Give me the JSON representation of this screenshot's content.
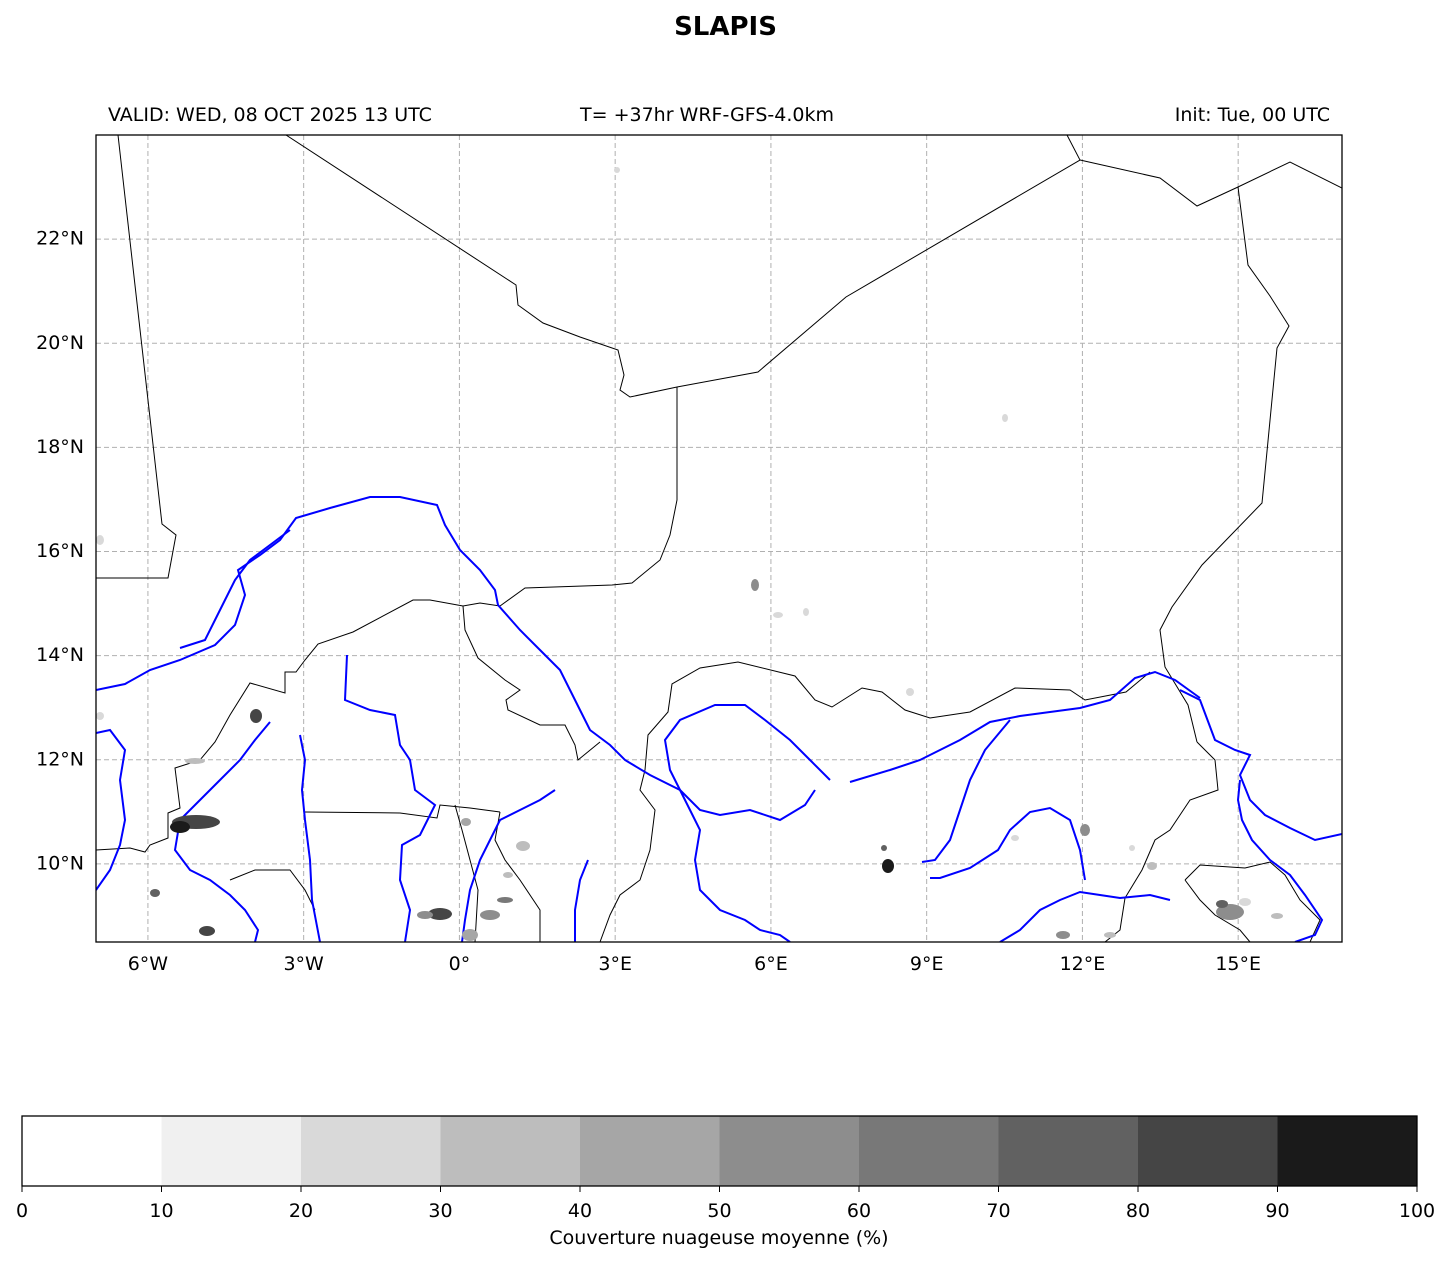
{
  "header": {
    "title": "SLAPIS",
    "valid": "VALID: WED, 08 OCT 2025 13 UTC",
    "forecast": "T= +37hr WRF-GFS-4.0km",
    "init": "Init: Tue, 00 UTC"
  },
  "map": {
    "extent": {
      "lon": [
        -7,
        17
      ],
      "lat": [
        8.5,
        24
      ]
    },
    "lat_ticks": [
      {
        "value": 22,
        "label": "22°N"
      },
      {
        "value": 20,
        "label": "20°N"
      },
      {
        "value": 18,
        "label": "18°N"
      },
      {
        "value": 16,
        "label": "16°N"
      },
      {
        "value": 14,
        "label": "14°N"
      },
      {
        "value": 12,
        "label": "12°N"
      },
      {
        "value": 10,
        "label": "10°N"
      }
    ],
    "lon_ticks": [
      {
        "value": -6,
        "label": "6°W"
      },
      {
        "value": -3,
        "label": "3°W"
      },
      {
        "value": 0,
        "label": "0°"
      },
      {
        "value": 3,
        "label": "3°E"
      },
      {
        "value": 6,
        "label": "6°E"
      },
      {
        "value": 9,
        "label": "9°E"
      },
      {
        "value": 12,
        "label": "12°E"
      },
      {
        "value": 15,
        "label": "15°E"
      }
    ],
    "gridlines": true,
    "border_color": "#000000",
    "river_color": "#0000ff"
  },
  "colorbar": {
    "label": "Couverture nuageuse moyenne (%)",
    "ticks": [
      "0",
      "10",
      "20",
      "30",
      "40",
      "50",
      "60",
      "70",
      "80",
      "90",
      "100"
    ],
    "colors": [
      "#ffffff",
      "#f0f0f0",
      "#d9d9d9",
      "#bdbdbd",
      "#a6a6a6",
      "#8d8d8d",
      "#787878",
      "#616161",
      "#454545",
      "#1a1a1a"
    ]
  }
}
